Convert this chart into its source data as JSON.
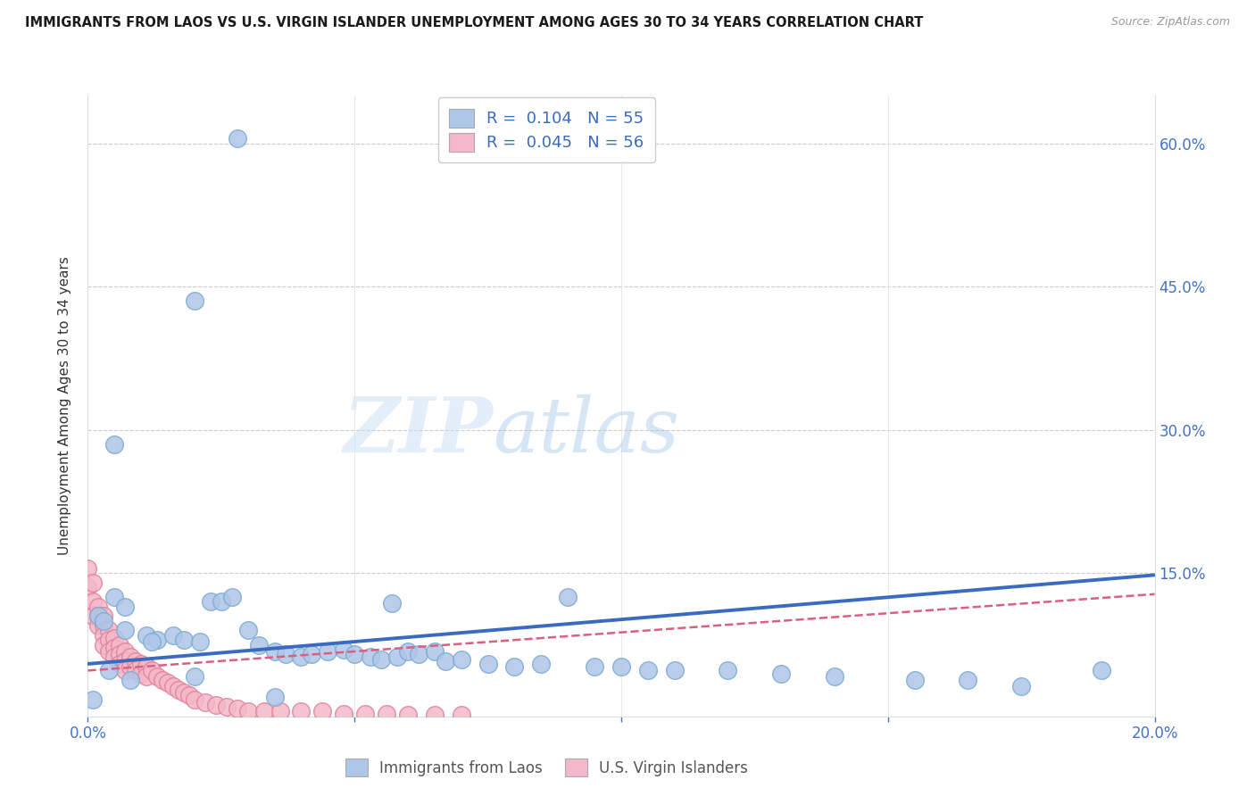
{
  "title": "IMMIGRANTS FROM LAOS VS U.S. VIRGIN ISLANDER UNEMPLOYMENT AMONG AGES 30 TO 34 YEARS CORRELATION CHART",
  "source": "Source: ZipAtlas.com",
  "ylabel": "Unemployment Among Ages 30 to 34 years",
  "xlim": [
    0.0,
    0.2
  ],
  "ylim": [
    0.0,
    0.65
  ],
  "xticks": [
    0.0,
    0.05,
    0.1,
    0.15,
    0.2
  ],
  "xticklabels": [
    "0.0%",
    "",
    "",
    "",
    "20.0%"
  ],
  "yticks_right": [
    0.0,
    0.15,
    0.3,
    0.45,
    0.6
  ],
  "ytick_labels_right": [
    "",
    "15.0%",
    "30.0%",
    "45.0%",
    "60.0%"
  ],
  "grid_color": "#cccccc",
  "background_color": "#ffffff",
  "blue_color": "#aec6e8",
  "blue_edge_color": "#7aaad0",
  "blue_line_color": "#3a6bbf",
  "pink_color": "#f4b8c8",
  "pink_edge_color": "#e08098",
  "pink_line_color": "#d96080",
  "legend_R_blue": "0.104",
  "legend_N_blue": "55",
  "legend_R_pink": "0.045",
  "legend_N_pink": "56",
  "legend_label_blue": "Immigrants from Laos",
  "legend_label_pink": "U.S. Virgin Islanders",
  "watermark": "ZIPatlas",
  "blue_line_x0": 0.0,
  "blue_line_y0": 0.055,
  "blue_line_x1": 0.2,
  "blue_line_y1": 0.148,
  "pink_line_x0": 0.0,
  "pink_line_y0": 0.048,
  "pink_line_x1": 0.2,
  "pink_line_y1": 0.128,
  "blue_scatter_x": [
    0.028,
    0.02,
    0.005,
    0.005,
    0.007,
    0.002,
    0.003,
    0.007,
    0.011,
    0.013,
    0.016,
    0.018,
    0.021,
    0.023,
    0.025,
    0.027,
    0.03,
    0.032,
    0.035,
    0.037,
    0.04,
    0.042,
    0.045,
    0.048,
    0.05,
    0.053,
    0.055,
    0.057,
    0.058,
    0.06,
    0.062,
    0.065,
    0.067,
    0.07,
    0.075,
    0.08,
    0.085,
    0.09,
    0.095,
    0.1,
    0.105,
    0.11,
    0.12,
    0.13,
    0.14,
    0.155,
    0.165,
    0.175,
    0.19,
    0.001,
    0.004,
    0.008,
    0.012,
    0.02,
    0.035
  ],
  "blue_scatter_y": [
    0.605,
    0.435,
    0.285,
    0.125,
    0.115,
    0.105,
    0.1,
    0.09,
    0.085,
    0.08,
    0.085,
    0.08,
    0.078,
    0.12,
    0.12,
    0.125,
    0.09,
    0.075,
    0.068,
    0.065,
    0.062,
    0.065,
    0.068,
    0.07,
    0.065,
    0.062,
    0.06,
    0.118,
    0.062,
    0.068,
    0.065,
    0.068,
    0.058,
    0.06,
    0.055,
    0.052,
    0.055,
    0.125,
    0.052,
    0.052,
    0.048,
    0.048,
    0.048,
    0.045,
    0.042,
    0.038,
    0.038,
    0.032,
    0.048,
    0.018,
    0.048,
    0.038,
    0.078,
    0.042,
    0.02
  ],
  "pink_scatter_x": [
    0.0,
    0.0,
    0.001,
    0.001,
    0.001,
    0.002,
    0.002,
    0.002,
    0.003,
    0.003,
    0.003,
    0.003,
    0.004,
    0.004,
    0.004,
    0.005,
    0.005,
    0.005,
    0.006,
    0.006,
    0.006,
    0.007,
    0.007,
    0.007,
    0.008,
    0.008,
    0.009,
    0.009,
    0.01,
    0.01,
    0.011,
    0.011,
    0.012,
    0.013,
    0.014,
    0.015,
    0.016,
    0.017,
    0.018,
    0.019,
    0.02,
    0.022,
    0.024,
    0.026,
    0.028,
    0.03,
    0.033,
    0.036,
    0.04,
    0.044,
    0.048,
    0.052,
    0.056,
    0.06,
    0.065,
    0.07
  ],
  "pink_scatter_y": [
    0.155,
    0.135,
    0.14,
    0.12,
    0.105,
    0.115,
    0.105,
    0.095,
    0.105,
    0.095,
    0.085,
    0.075,
    0.09,
    0.08,
    0.068,
    0.082,
    0.072,
    0.062,
    0.075,
    0.065,
    0.055,
    0.068,
    0.058,
    0.048,
    0.062,
    0.052,
    0.058,
    0.048,
    0.055,
    0.045,
    0.052,
    0.042,
    0.048,
    0.042,
    0.038,
    0.035,
    0.032,
    0.028,
    0.025,
    0.022,
    0.018,
    0.015,
    0.012,
    0.01,
    0.008,
    0.005,
    0.005,
    0.005,
    0.005,
    0.005,
    0.003,
    0.003,
    0.003,
    0.002,
    0.002,
    0.002
  ]
}
